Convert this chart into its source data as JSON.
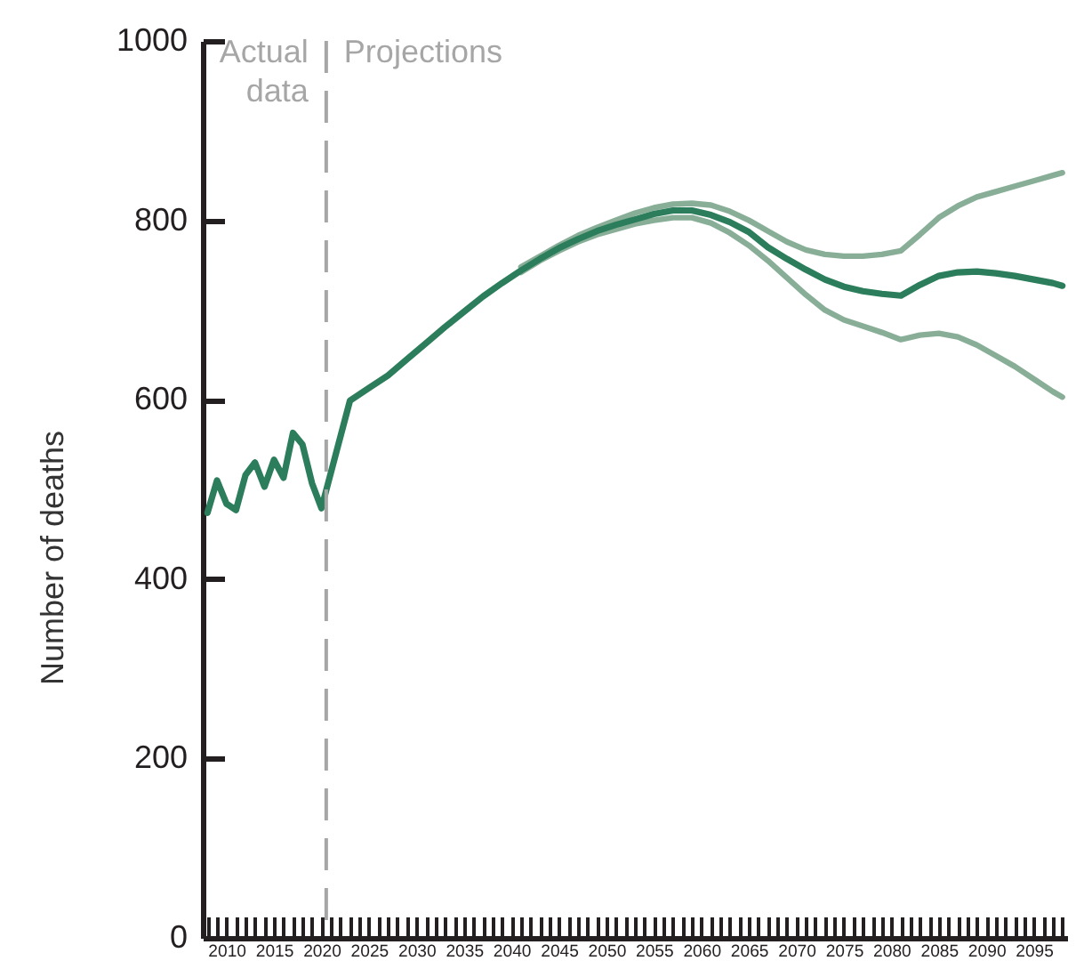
{
  "chart_data": {
    "type": "line",
    "ylabel": "Number of deaths",
    "series": [
      {
        "color": "#2b7d5b",
        "x": [
          2008,
          2009,
          2010,
          2011,
          2012,
          2013,
          2014,
          2015,
          2016,
          2017,
          2018,
          2019,
          2020,
          2023,
          2025,
          2027,
          2029,
          2031,
          2033,
          2035,
          2037,
          2039,
          2041,
          2043,
          2045,
          2047,
          2049,
          2051,
          2053,
          2055,
          2057,
          2059,
          2061,
          2063,
          2065,
          2067,
          2069,
          2071,
          2073,
          2075,
          2077,
          2079,
          2081,
          2083,
          2085,
          2087,
          2089,
          2091,
          2093,
          2095,
          2097,
          2098
        ],
        "values": [
          474,
          510,
          484,
          477,
          516,
          530,
          503,
          533,
          513,
          563,
          550,
          507,
          479,
          599,
          613,
          627,
          645,
          663,
          681,
          698,
          715,
          730,
          744,
          757,
          769,
          779,
          788,
          795,
          801,
          807,
          811,
          811,
          806,
          798,
          787,
          770,
          757,
          745,
          734,
          726,
          721,
          718,
          716,
          728,
          738,
          742,
          743,
          741,
          738,
          734,
          730,
          727
        ]
      },
      {
        "color": "#88ae97",
        "x": [
          2041,
          2043,
          2045,
          2047,
          2049,
          2051,
          2053,
          2055,
          2057,
          2059,
          2061,
          2063,
          2065,
          2067,
          2069,
          2071,
          2073,
          2075,
          2077,
          2079,
          2081,
          2083,
          2085,
          2087,
          2089,
          2091,
          2093,
          2095,
          2097,
          2098
        ],
        "values": [
          748,
          760,
          772,
          783,
          792,
          800,
          808,
          814,
          818,
          819,
          817,
          810,
          800,
          788,
          776,
          767,
          762,
          760,
          760,
          762,
          766,
          784,
          803,
          816,
          826,
          832,
          838,
          844,
          850,
          853
        ]
      },
      {
        "color": "#88ae97",
        "x": [
          2041,
          2043,
          2045,
          2047,
          2049,
          2051,
          2053,
          2055,
          2057,
          2059,
          2061,
          2063,
          2065,
          2067,
          2069,
          2071,
          2073,
          2075,
          2077,
          2079,
          2081,
          2083,
          2085,
          2087,
          2089,
          2091,
          2093,
          2095,
          2097,
          2098
        ],
        "values": [
          742,
          755,
          766,
          776,
          784,
          790,
          796,
          800,
          803,
          803,
          797,
          786,
          772,
          755,
          736,
          717,
          700,
          689,
          682,
          675,
          667,
          672,
          674,
          670,
          661,
          649,
          637,
          623,
          609,
          603
        ]
      }
    ],
    "xlim": [
      2007.5,
      2098.5
    ],
    "xticks": [
      {
        "value": 2008,
        "label": null
      },
      {
        "value": 2009,
        "label": null
      },
      2010,
      {
        "value": 2011,
        "label": null
      },
      {
        "value": 2012,
        "label": null
      },
      {
        "value": 2013,
        "label": null
      },
      {
        "value": 2014,
        "label": null
      },
      2015,
      {
        "value": 2016,
        "label": null
      },
      {
        "value": 2017,
        "label": null
      },
      {
        "value": 2018,
        "label": null
      },
      {
        "value": 2019,
        "label": null
      },
      2020,
      {
        "value": 2021,
        "label": null
      },
      {
        "value": 2022,
        "label": null
      },
      {
        "value": 2023,
        "label": null
      },
      {
        "value": 2024,
        "label": null
      },
      2025,
      {
        "value": 2026,
        "label": null
      },
      {
        "value": 2027,
        "label": null
      },
      {
        "value": 2028,
        "label": null
      },
      {
        "value": 2029,
        "label": null
      },
      2030,
      {
        "value": 2031,
        "label": null
      },
      {
        "value": 2032,
        "label": null
      },
      {
        "value": 2033,
        "label": null
      },
      {
        "value": 2034,
        "label": null
      },
      2035,
      {
        "value": 2036,
        "label": null
      },
      {
        "value": 2037,
        "label": null
      },
      {
        "value": 2038,
        "label": null
      },
      {
        "value": 2039,
        "label": null
      },
      2040,
      {
        "value": 2041,
        "label": null
      },
      {
        "value": 2042,
        "label": null
      },
      {
        "value": 2043,
        "label": null
      },
      {
        "value": 2044,
        "label": null
      },
      2045,
      {
        "value": 2046,
        "label": null
      },
      {
        "value": 2047,
        "label": null
      },
      {
        "value": 2048,
        "label": null
      },
      {
        "value": 2049,
        "label": null
      },
      2050,
      {
        "value": 2051,
        "label": null
      },
      {
        "value": 2052,
        "label": null
      },
      {
        "value": 2053,
        "label": null
      },
      {
        "value": 2054,
        "label": null
      },
      2055,
      {
        "value": 2056,
        "label": null
      },
      {
        "value": 2057,
        "label": null
      },
      {
        "value": 2058,
        "label": null
      },
      {
        "value": 2059,
        "label": null
      },
      2060,
      {
        "value": 2061,
        "label": null
      },
      {
        "value": 2062,
        "label": null
      },
      {
        "value": 2063,
        "label": null
      },
      {
        "value": 2064,
        "label": null
      },
      2065,
      {
        "value": 2066,
        "label": null
      },
      {
        "value": 2067,
        "label": null
      },
      {
        "value": 2068,
        "label": null
      },
      {
        "value": 2069,
        "label": null
      },
      2070,
      {
        "value": 2071,
        "label": null
      },
      {
        "value": 2072,
        "label": null
      },
      {
        "value": 2073,
        "label": null
      },
      {
        "value": 2074,
        "label": null
      },
      2075,
      {
        "value": 2076,
        "label": null
      },
      {
        "value": 2077,
        "label": null
      },
      {
        "value": 2078,
        "label": null
      },
      {
        "value": 2079,
        "label": null
      },
      2080,
      {
        "value": 2081,
        "label": null
      },
      {
        "value": 2082,
        "label": null
      },
      {
        "value": 2083,
        "label": null
      },
      {
        "value": 2084,
        "label": null
      },
      2085,
      {
        "value": 2086,
        "label": null
      },
      {
        "value": 2087,
        "label": null
      },
      {
        "value": 2088,
        "label": null
      },
      {
        "value": 2089,
        "label": null
      },
      2090,
      {
        "value": 2091,
        "label": null
      },
      {
        "value": 2092,
        "label": null
      },
      {
        "value": 2093,
        "label": null
      },
      {
        "value": 2094,
        "label": null
      },
      2095,
      {
        "value": 2096,
        "label": null
      },
      {
        "value": 2097,
        "label": null
      },
      {
        "value": 2098,
        "label": null
      }
    ],
    "ylim": [
      0,
      1000
    ],
    "yticks": [
      0,
      200,
      400,
      600,
      800,
      1000
    ],
    "ref_lines": [
      {
        "axis": "x",
        "value": 2020.5,
        "color": "#a6a6a6",
        "line_style": "dashed"
      }
    ],
    "annotations": [
      "Actual data",
      "Projections"
    ],
    "grid": false
  }
}
